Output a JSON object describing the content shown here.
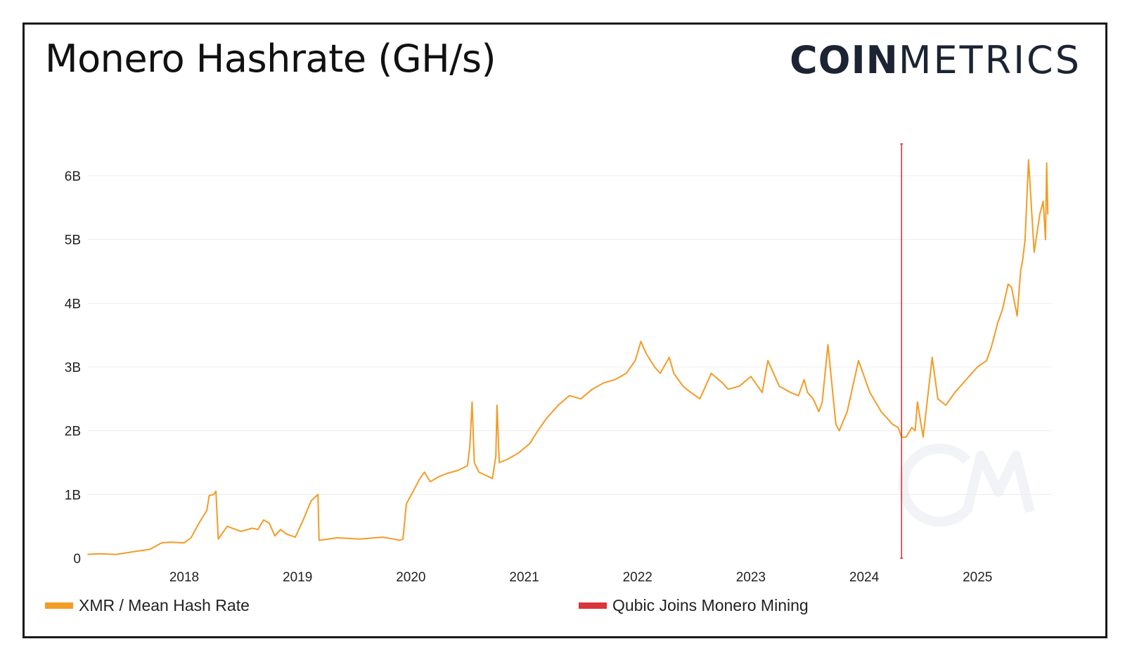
{
  "header": {
    "title": "Monero Hashrate (GH/s)",
    "logo_bold": "COIN",
    "logo_thin": "METRICS"
  },
  "colors": {
    "series": "#f39c26",
    "event": "#d9353a",
    "grid": "#ececec",
    "watermark": "#f1f3f7"
  },
  "legend": {
    "series_label": "XMR / Mean Hash Rate",
    "event_label": "Qubic Joins Monero Mining"
  },
  "chart_data": {
    "type": "line",
    "title": "Monero Hashrate (GH/s)",
    "xlabel": "",
    "ylabel": "",
    "x_unit": "year",
    "xlim": [
      2017.15,
      2025.65
    ],
    "ylim": [
      0,
      6.5
    ],
    "y_unit": "billion GH/s",
    "grid": true,
    "legend_position": "bottom",
    "x_ticks": [
      {
        "value": 2018,
        "label": "2018"
      },
      {
        "value": 2019,
        "label": "2019"
      },
      {
        "value": 2020,
        "label": "2020"
      },
      {
        "value": 2021,
        "label": "2021"
      },
      {
        "value": 2022,
        "label": "2022"
      },
      {
        "value": 2023,
        "label": "2023"
      },
      {
        "value": 2024,
        "label": "2024"
      },
      {
        "value": 2025,
        "label": "2025"
      }
    ],
    "y_ticks": [
      {
        "value": 0,
        "label": "0"
      },
      {
        "value": 1,
        "label": "1B"
      },
      {
        "value": 2,
        "label": "2B"
      },
      {
        "value": 3,
        "label": "3B"
      },
      {
        "value": 4,
        "label": "4B"
      },
      {
        "value": 5,
        "label": "5B"
      },
      {
        "value": 6,
        "label": "6B"
      }
    ],
    "events": [
      {
        "name": "Qubic Joins Monero Mining",
        "x": 2024.33,
        "y_top": 6.5
      }
    ],
    "series": [
      {
        "name": "XMR / Mean Hash Rate",
        "x": [
          2017.15,
          2017.25,
          2017.4,
          2017.55,
          2017.7,
          2017.8,
          2017.88,
          2018.0,
          2018.06,
          2018.13,
          2018.2,
          2018.22,
          2018.26,
          2018.28,
          2018.3,
          2018.38,
          2018.5,
          2018.6,
          2018.65,
          2018.7,
          2018.75,
          2018.8,
          2018.85,
          2018.9,
          2018.98,
          2019.05,
          2019.12,
          2019.15,
          2019.18,
          2019.19,
          2019.35,
          2019.55,
          2019.75,
          2019.85,
          2019.9,
          2019.93,
          2019.96,
          2020.02,
          2020.08,
          2020.12,
          2020.17,
          2020.25,
          2020.32,
          2020.42,
          2020.5,
          2020.52,
          2020.54,
          2020.56,
          2020.6,
          2020.66,
          2020.72,
          2020.75,
          2020.76,
          2020.78,
          2020.85,
          2020.95,
          2021.05,
          2021.12,
          2021.2,
          2021.3,
          2021.4,
          2021.5,
          2021.6,
          2021.7,
          2021.8,
          2021.9,
          2021.98,
          2022.03,
          2022.08,
          2022.15,
          2022.2,
          2022.28,
          2022.32,
          2022.4,
          2022.47,
          2022.55,
          2022.65,
          2022.75,
          2022.8,
          2022.9,
          2023.0,
          2023.1,
          2023.15,
          2023.25,
          2023.35,
          2023.42,
          2023.47,
          2023.5,
          2023.55,
          2023.6,
          2023.63,
          2023.68,
          2023.75,
          2023.78,
          2023.85,
          2023.95,
          2024.05,
          2024.15,
          2024.25,
          2024.3,
          2024.33,
          2024.37,
          2024.42,
          2024.45,
          2024.47,
          2024.52,
          2024.6,
          2024.65,
          2024.72,
          2024.8,
          2024.9,
          2025.0,
          2025.08,
          2025.12,
          2025.18,
          2025.22,
          2025.27,
          2025.3,
          2025.35,
          2025.38,
          2025.4,
          2025.42,
          2025.45,
          2025.5,
          2025.55,
          2025.58,
          2025.6,
          2025.61,
          2025.62
        ],
        "y": [
          0.06,
          0.07,
          0.06,
          0.1,
          0.14,
          0.24,
          0.25,
          0.24,
          0.32,
          0.55,
          0.75,
          0.98,
          1.0,
          1.05,
          0.3,
          0.5,
          0.42,
          0.47,
          0.45,
          0.6,
          0.55,
          0.35,
          0.45,
          0.38,
          0.33,
          0.6,
          0.9,
          0.95,
          1.0,
          0.28,
          0.32,
          0.3,
          0.33,
          0.3,
          0.28,
          0.3,
          0.85,
          1.05,
          1.25,
          1.35,
          1.2,
          1.28,
          1.33,
          1.38,
          1.45,
          1.75,
          2.45,
          1.5,
          1.35,
          1.3,
          1.25,
          1.6,
          2.4,
          1.5,
          1.55,
          1.65,
          1.8,
          2.0,
          2.2,
          2.4,
          2.55,
          2.5,
          2.65,
          2.75,
          2.8,
          2.9,
          3.1,
          3.4,
          3.2,
          3.0,
          2.9,
          3.15,
          2.9,
          2.7,
          2.6,
          2.5,
          2.9,
          2.75,
          2.65,
          2.7,
          2.85,
          2.6,
          3.1,
          2.7,
          2.6,
          2.55,
          2.8,
          2.6,
          2.5,
          2.3,
          2.45,
          3.35,
          2.1,
          2.0,
          2.3,
          3.1,
          2.6,
          2.3,
          2.1,
          2.05,
          1.9,
          1.9,
          2.05,
          2.0,
          2.45,
          1.9,
          3.15,
          2.5,
          2.4,
          2.6,
          2.8,
          3.0,
          3.1,
          3.3,
          3.7,
          3.9,
          4.3,
          4.25,
          3.8,
          4.5,
          4.7,
          5.0,
          6.25,
          4.8,
          5.4,
          5.6,
          5.0,
          6.2,
          5.4
        ]
      }
    ]
  }
}
